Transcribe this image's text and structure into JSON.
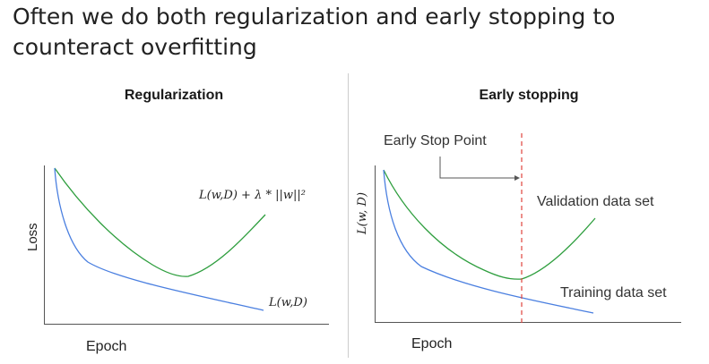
{
  "slide": {
    "title": "Often we do both regularization and early stopping to counteract overfitting"
  },
  "left_panel": {
    "title": "Regularization",
    "x_label": "Epoch",
    "y_label": "Loss",
    "regularized_curve_label": "L(w,D) + λ * ||w||²",
    "loss_curve_label": "L(w,D)"
  },
  "right_panel": {
    "title": "Early stopping",
    "x_label": "Epoch",
    "y_label": "L(w, D)",
    "early_stop_label": "Early Stop Point",
    "validation_label": "Validation data set",
    "training_label": "Training data set"
  },
  "colors": {
    "green_curve": "#2e9e3e",
    "blue_curve": "#4a7fe0",
    "stop_line": "#e0443c",
    "axis": "#555555"
  }
}
